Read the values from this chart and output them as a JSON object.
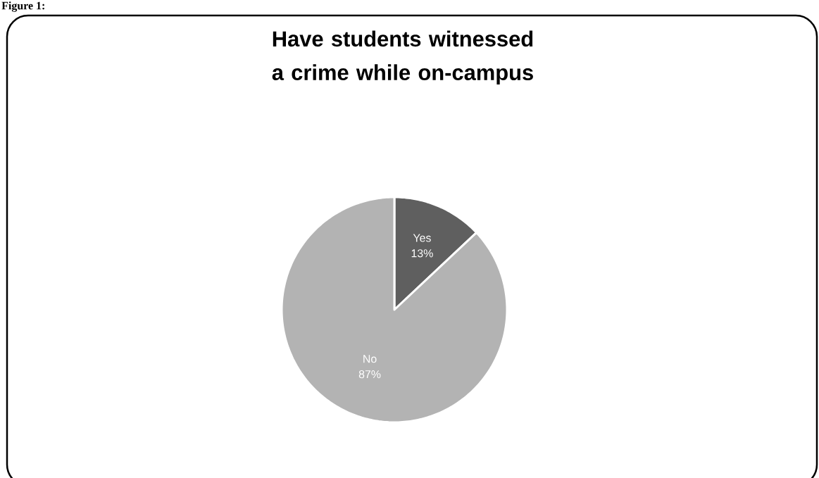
{
  "chart_data": {
    "type": "pie",
    "title": "Have students witnessed a crime while on-campus",
    "categories": [
      "Yes",
      "No"
    ],
    "values": [
      13,
      87
    ],
    "value_labels": [
      "13%",
      "87%"
    ],
    "colors": [
      "#5f5f5f",
      "#b3b3b3"
    ],
    "annotations": [
      "Figure 1:"
    ]
  }
}
